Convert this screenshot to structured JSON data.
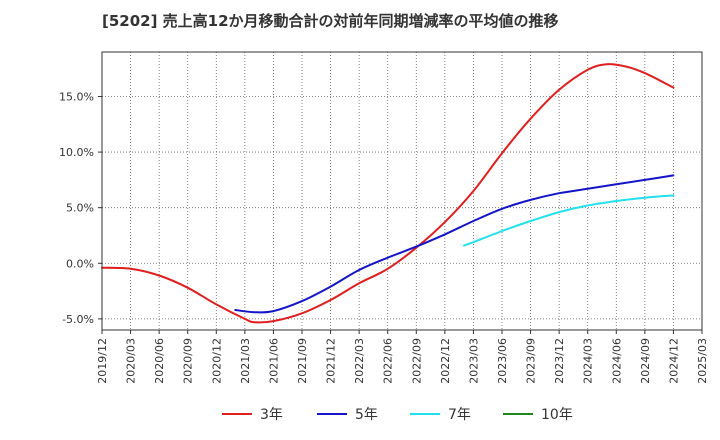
{
  "chart_data": {
    "type": "line",
    "title": "[5202]  売上高12か月移動合計の対前年同期増減率の平均値の推移",
    "xlabel": "",
    "ylabel": "",
    "y_unit": "%",
    "ylim": [
      -6.0,
      19.0
    ],
    "grid": true,
    "legend_position": "bottom",
    "x_tick_labels": [
      "2019/12",
      "2020/03",
      "2020/06",
      "2020/09",
      "2020/12",
      "2021/03",
      "2021/06",
      "2021/09",
      "2021/12",
      "2022/03",
      "2022/06",
      "2022/09",
      "2022/12",
      "2023/03",
      "2023/06",
      "2023/09",
      "2023/12",
      "2024/03",
      "2024/06",
      "2024/09",
      "2024/12",
      "2025/03"
    ],
    "y_tick_labels": [
      "-5.0%",
      "0.0%",
      "5.0%",
      "10.0%",
      "15.0%"
    ],
    "y_ticks": [
      -5,
      0,
      5,
      10,
      15
    ],
    "series": [
      {
        "name": "3年",
        "color": "#dd1f1f",
        "points": [
          [
            "2019/12",
            -0.4
          ],
          [
            "2020/03",
            -0.5
          ],
          [
            "2020/06",
            -1.1
          ],
          [
            "2020/09",
            -2.2
          ],
          [
            "2020/12",
            -3.7
          ],
          [
            "2021/03",
            -5.0
          ],
          [
            "2021/04",
            -5.3
          ],
          [
            "2021/06",
            -5.2
          ],
          [
            "2021/09",
            -4.5
          ],
          [
            "2021/12",
            -3.3
          ],
          [
            "2022/03",
            -1.8
          ],
          [
            "2022/06",
            -0.5
          ],
          [
            "2022/09",
            1.4
          ],
          [
            "2022/12",
            3.7
          ],
          [
            "2023/03",
            6.5
          ],
          [
            "2023/06",
            9.9
          ],
          [
            "2023/09",
            13.0
          ],
          [
            "2023/12",
            15.6
          ],
          [
            "2024/03",
            17.4
          ],
          [
            "2024/05",
            17.9
          ],
          [
            "2024/07",
            17.7
          ],
          [
            "2024/09",
            17.1
          ],
          [
            "2024/12",
            15.8
          ]
        ]
      },
      {
        "name": "5年",
        "color": "#1515c8",
        "points": [
          [
            "2021/02",
            -4.2
          ],
          [
            "2021/04",
            -4.4
          ],
          [
            "2021/06",
            -4.3
          ],
          [
            "2021/09",
            -3.4
          ],
          [
            "2021/12",
            -2.1
          ],
          [
            "2022/03",
            -0.6
          ],
          [
            "2022/06",
            0.5
          ],
          [
            "2022/09",
            1.5
          ],
          [
            "2022/12",
            2.6
          ],
          [
            "2023/03",
            3.8
          ],
          [
            "2023/06",
            4.9
          ],
          [
            "2023/09",
            5.7
          ],
          [
            "2023/12",
            6.3
          ],
          [
            "2024/03",
            6.7
          ],
          [
            "2024/06",
            7.1
          ],
          [
            "2024/09",
            7.5
          ],
          [
            "2024/12",
            7.9
          ]
        ]
      },
      {
        "name": "7年",
        "color": "#22e0ee",
        "points": [
          [
            "2023/02",
            1.6
          ],
          [
            "2023/03",
            1.9
          ],
          [
            "2023/06",
            2.9
          ],
          [
            "2023/09",
            3.8
          ],
          [
            "2023/12",
            4.6
          ],
          [
            "2024/03",
            5.2
          ],
          [
            "2024/06",
            5.6
          ],
          [
            "2024/09",
            5.9
          ],
          [
            "2024/12",
            6.1
          ]
        ]
      },
      {
        "name": "10年",
        "color": "#1e8a1e",
        "points": []
      }
    ]
  }
}
